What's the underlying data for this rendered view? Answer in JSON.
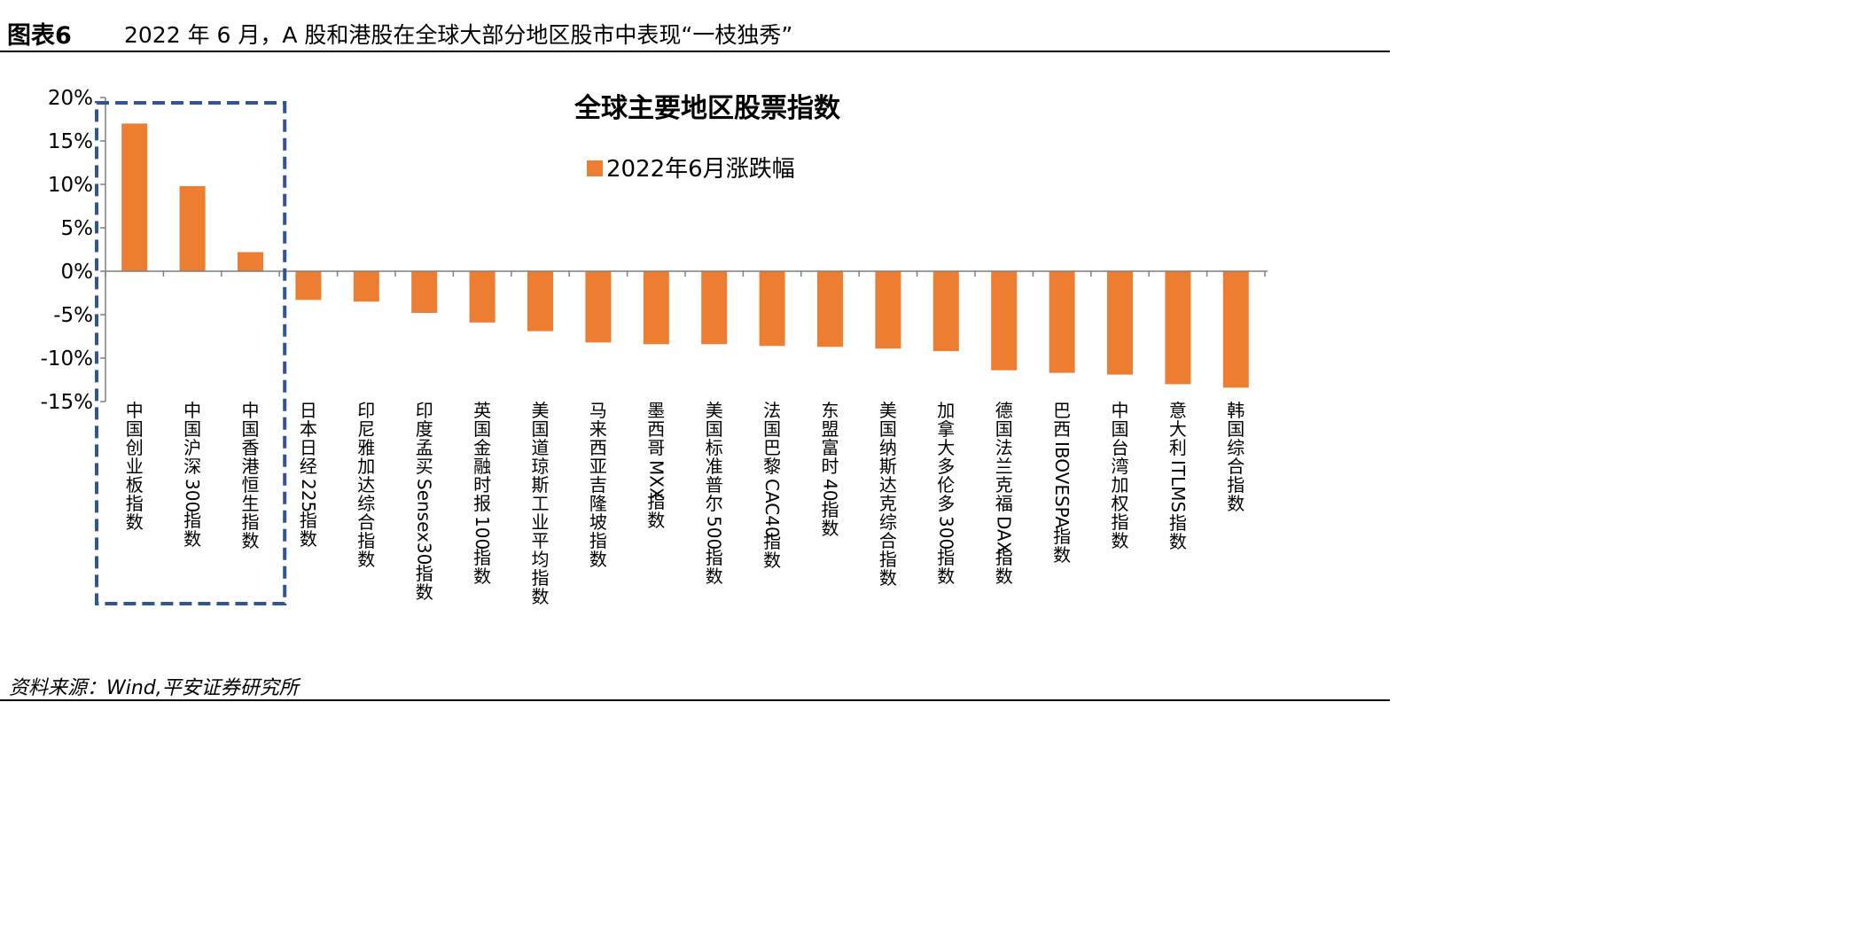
{
  "figure": {
    "label": "图表6",
    "title": "2022 年 6 月，A 股和港股在全球大部分地区股市中表现“一枝独秀”",
    "source": "资料来源：Wind,平安证券研究所"
  },
  "colors": {
    "bar": "#ED7D31",
    "highlight_box": "#2F5597",
    "axis": "#7f7f7f"
  },
  "chart_data": {
    "type": "bar",
    "title": "全球主要地区股票指数",
    "legend_position": "top-center",
    "grid": false,
    "ylim": [
      -15,
      20
    ],
    "yticks": [
      20,
      15,
      10,
      5,
      0,
      -5,
      -10,
      -15
    ],
    "ytick_labels": [
      "20%",
      "15%",
      "10%",
      "5%",
      "0%",
      "-5%",
      "-10%",
      "-15%"
    ],
    "categories": [
      "中国创业板指数",
      "中国沪深300指数",
      "中国香港恒生指数",
      "日本日经225指数",
      "印尼雅加达综合指数",
      "印度孟买Sensex30指数",
      "英国金融时报100指数",
      "美国道琼斯工业平均指数",
      "马来西亚吉隆坡指数",
      "墨西哥MXX指数",
      "美国标准普尔500指数",
      "法国巴黎CAC40指数",
      "东盟富时40指数",
      "美国纳斯达克综合指数",
      "加拿大多伦多300指数",
      "德国法兰克福DAX指数",
      "巴西IBOVESPA指数",
      "中国台湾加权指数",
      "意大利ITLMS指数",
      "韩国综合指数"
    ],
    "series": [
      {
        "name": "2022年6月涨跌幅",
        "values": [
          17.0,
          9.8,
          2.2,
          -3.3,
          -3.5,
          -4.8,
          -5.9,
          -6.9,
          -8.2,
          -8.4,
          -8.4,
          -8.6,
          -8.7,
          -8.9,
          -9.2,
          -11.4,
          -11.7,
          -11.9,
          -13.0,
          -13.4
        ]
      }
    ],
    "highlight": {
      "from": 0,
      "to": 2
    }
  }
}
